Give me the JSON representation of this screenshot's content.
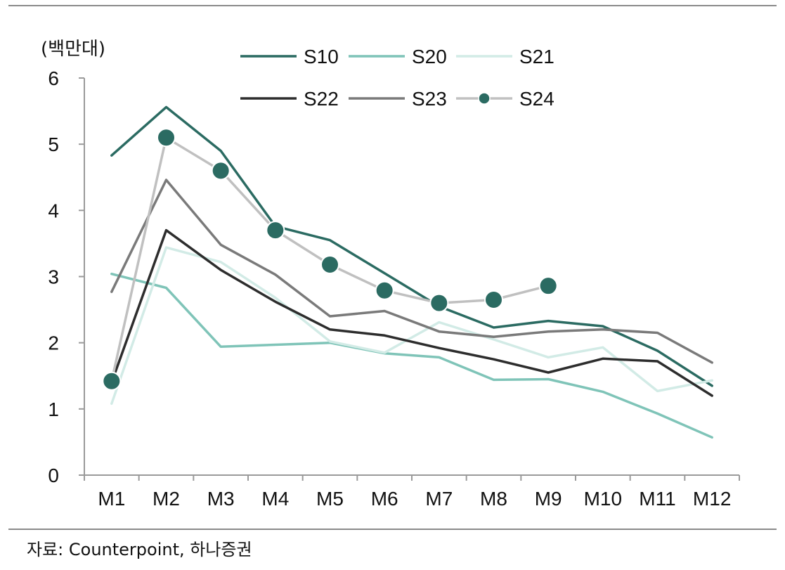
{
  "chart_data": {
    "type": "line",
    "unit_label": "(백만대)",
    "categories": [
      "M1",
      "M2",
      "M3",
      "M4",
      "M5",
      "M6",
      "M7",
      "M8",
      "M9",
      "M10",
      "M11",
      "M12"
    ],
    "yticks": [
      "0",
      "1",
      "2",
      "3",
      "4",
      "5",
      "6"
    ],
    "ylim": [
      0,
      6
    ],
    "legend_position": "top",
    "series": [
      {
        "name": "S10",
        "color": "#2b6b62",
        "width": 3.5,
        "markers": false,
        "values": [
          4.83,
          5.56,
          4.9,
          3.76,
          3.55,
          3.05,
          2.55,
          2.23,
          2.33,
          2.25,
          1.88,
          1.35
        ]
      },
      {
        "name": "S20",
        "color": "#7fc4b8",
        "width": 3.5,
        "markers": false,
        "values": [
          3.04,
          2.83,
          1.94,
          1.97,
          2.0,
          1.84,
          1.78,
          1.44,
          1.45,
          1.26,
          0.93,
          0.57
        ]
      },
      {
        "name": "S21",
        "color": "#d2ebe6",
        "width": 3.5,
        "markers": false,
        "values": [
          1.08,
          3.44,
          3.22,
          2.68,
          2.02,
          1.85,
          2.31,
          2.05,
          1.78,
          1.93,
          1.27,
          1.43
        ]
      },
      {
        "name": "S22",
        "color": "#2d2d2d",
        "width": 3.5,
        "markers": false,
        "values": [
          1.4,
          3.7,
          3.1,
          2.62,
          2.2,
          2.11,
          1.92,
          1.75,
          1.55,
          1.76,
          1.72,
          1.2
        ]
      },
      {
        "name": "S23",
        "color": "#7a7a7a",
        "width": 3.5,
        "markers": false,
        "values": [
          2.77,
          4.46,
          3.48,
          3.03,
          2.4,
          2.48,
          2.17,
          2.09,
          2.17,
          2.2,
          2.15,
          1.7
        ]
      },
      {
        "name": "S24",
        "color": "#c0c0c0",
        "marker_color": "#2b6b62",
        "width": 3.5,
        "markers": true,
        "values": [
          1.42,
          5.1,
          4.6,
          3.7,
          3.18,
          2.79,
          2.6,
          2.65,
          2.86,
          null,
          null,
          null
        ]
      }
    ]
  },
  "footer": {
    "source": "자료: Counterpoint, 하나증권"
  }
}
